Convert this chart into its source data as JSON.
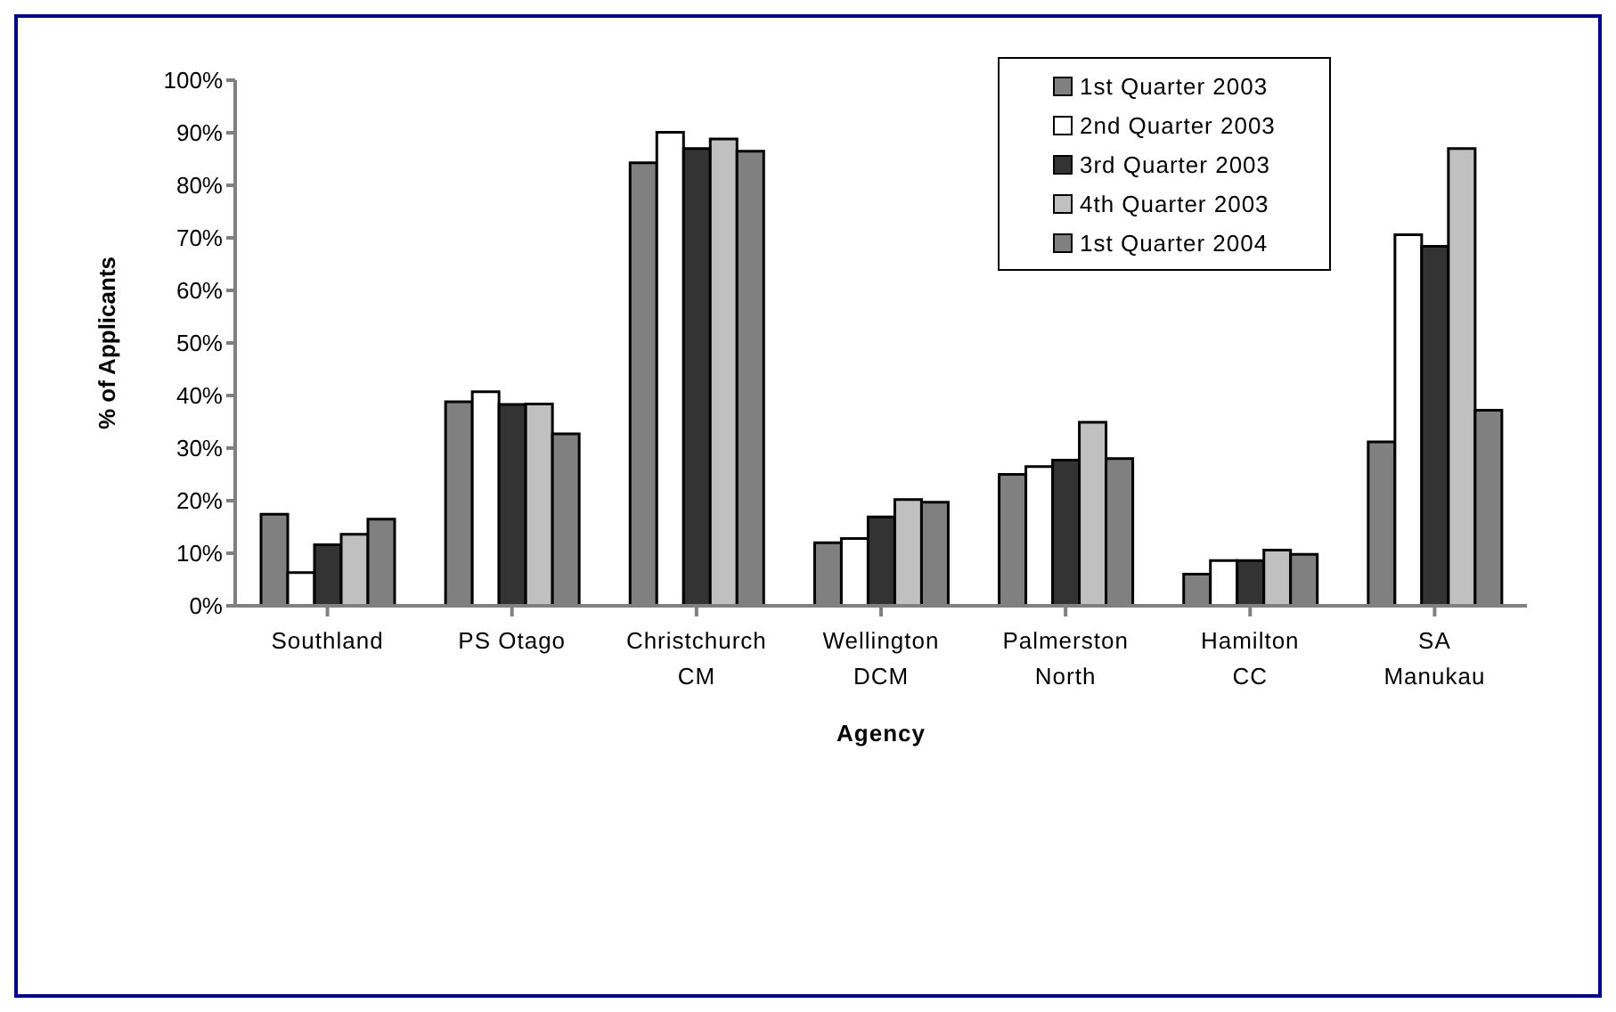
{
  "chart_data": {
    "type": "bar",
    "xlabel": "Agency",
    "ylabel": "% of Applicants",
    "categories": [
      "Southland",
      "PS Otago",
      "Christchurch\nCM",
      "Wellington\nDCM",
      "Palmerston\nNorth",
      "Hamilton\nCC",
      "SA\nManukau"
    ],
    "series": [
      {
        "name": "1st Quarter 2003",
        "color": "#808080",
        "values": [
          17.4,
          38.8,
          84.3,
          12.0,
          25.0,
          6.0,
          31.2
        ]
      },
      {
        "name": "2nd Quarter 2003",
        "color": "#ffffff",
        "values": [
          6.3,
          40.7,
          90.1,
          12.8,
          26.5,
          8.6,
          70.6
        ]
      },
      {
        "name": "3rd Quarter 2003",
        "color": "#333333",
        "values": [
          11.6,
          38.3,
          87.0,
          16.9,
          27.7,
          8.6,
          68.4
        ]
      },
      {
        "name": "4th Quarter 2003",
        "color": "#c0c0c0",
        "values": [
          13.6,
          38.4,
          88.8,
          20.2,
          34.9,
          10.6,
          87.0
        ]
      },
      {
        "name": "1st Quarter 2004",
        "color": "#808080",
        "values": [
          16.5,
          32.7,
          86.5,
          19.7,
          28.0,
          9.8,
          37.2
        ]
      }
    ],
    "ylim": [
      0,
      100
    ],
    "yticks": [
      {
        "value": 0,
        "label": "0%"
      },
      {
        "value": 10,
        "label": "10%"
      },
      {
        "value": 20,
        "label": "20%"
      },
      {
        "value": 30,
        "label": "30%"
      },
      {
        "value": 40,
        "label": "40%"
      },
      {
        "value": 50,
        "label": "50%"
      },
      {
        "value": 60,
        "label": "60%"
      },
      {
        "value": 70,
        "label": "70%"
      },
      {
        "value": 80,
        "label": "80%"
      },
      {
        "value": 90,
        "label": "90%"
      },
      {
        "value": 100,
        "label": "100%"
      }
    ],
    "grid": false,
    "legend": "top right"
  }
}
